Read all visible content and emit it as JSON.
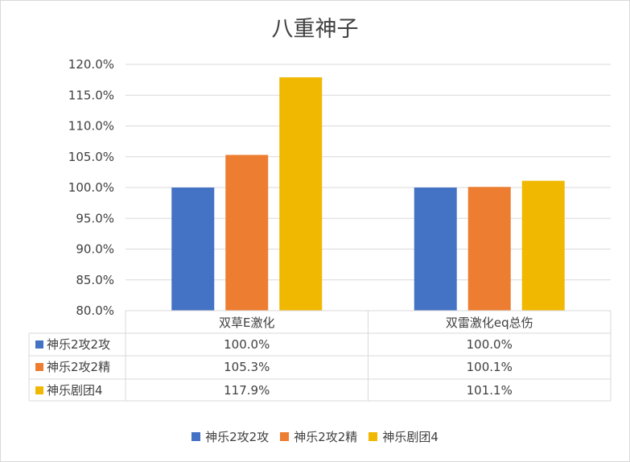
{
  "chart_data": {
    "type": "bar",
    "title": "八重神子",
    "categories": [
      "双草E激化",
      "双雷激化eq总伤"
    ],
    "series": [
      {
        "name": "神乐2攻2攻",
        "values": [
          100.0,
          100.0
        ],
        "labels": [
          "100.0%",
          "100.0%"
        ],
        "color": "#4472c4"
      },
      {
        "name": "神乐2攻2精",
        "values": [
          105.3,
          100.1
        ],
        "labels": [
          "105.3%",
          "100.1%"
        ],
        "color": "#ed7d31"
      },
      {
        "name": "神乐剧团4",
        "values": [
          117.9,
          101.1
        ],
        "labels": [
          "117.9%",
          "101.1%"
        ],
        "color": "#f0b800"
      }
    ],
    "ylim": [
      80,
      120
    ],
    "yticks": [
      "80.0%",
      "85.0%",
      "90.0%",
      "95.0%",
      "100.0%",
      "105.0%",
      "110.0%",
      "115.0%",
      "120.0%"
    ],
    "grid": true,
    "legend": "bottom",
    "data_table": true
  }
}
